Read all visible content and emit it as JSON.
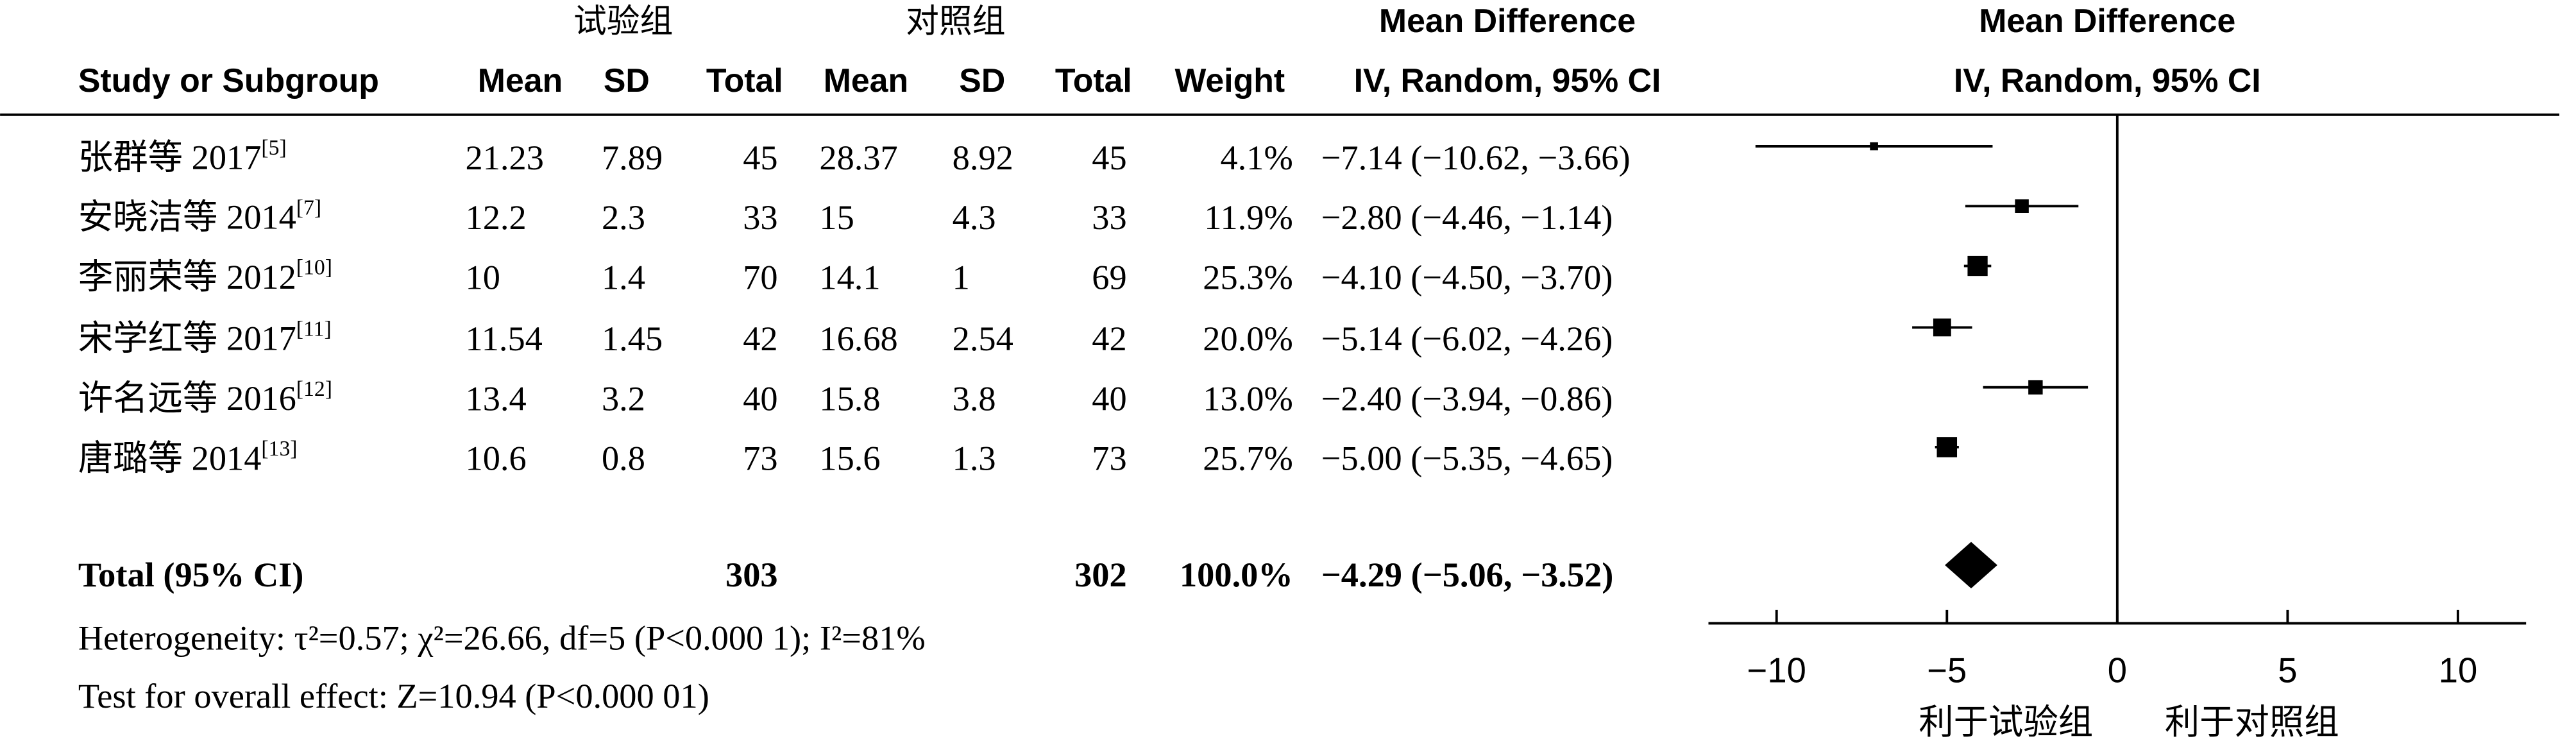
{
  "chart_data": {
    "type": "forest",
    "group_headers": [
      "试验组",
      "对照组"
    ],
    "columns": [
      "Study or Subgroup",
      "Mean",
      "SD",
      "Total",
      "Mean",
      "SD",
      "Total",
      "Weight",
      "IV, Random, 95% CI"
    ],
    "ci_header": "Mean Difference",
    "plot_header": [
      "Mean Difference",
      "IV, Random, 95% CI"
    ],
    "studies": [
      {
        "name": "张群等 2017",
        "ref": "[5]",
        "mean1": "21.23",
        "sd1": "7.89",
        "n1": "45",
        "mean2": "28.37",
        "sd2": "8.92",
        "n2": "45",
        "weight": 4.1,
        "weight_label": "4.1%",
        "md": -7.14,
        "lo": -10.62,
        "hi": -3.66,
        "ci_label": "−7.14 (−10.62, −3.66)"
      },
      {
        "name": "安晓洁等 2014",
        "ref": "[7]",
        "mean1": "12.2",
        "sd1": "2.3",
        "n1": "33",
        "mean2": "15",
        "sd2": "4.3",
        "n2": "33",
        "weight": 11.9,
        "weight_label": "11.9%",
        "md": -2.8,
        "lo": -4.46,
        "hi": -1.14,
        "ci_label": "−2.80 (−4.46, −1.14)"
      },
      {
        "name": "李丽荣等 2012",
        "ref": "[10]",
        "mean1": "10",
        "sd1": "1.4",
        "n1": "70",
        "mean2": "14.1",
        "sd2": "1",
        "n2": "69",
        "weight": 25.3,
        "weight_label": "25.3%",
        "md": -4.1,
        "lo": -4.5,
        "hi": -3.7,
        "ci_label": "−4.10 (−4.50, −3.70)"
      },
      {
        "name": "宋学红等 2017",
        "ref": "[11]",
        "mean1": "11.54",
        "sd1": "1.45",
        "n1": "42",
        "mean2": "16.68",
        "sd2": "2.54",
        "n2": "42",
        "weight": 20.0,
        "weight_label": "20.0%",
        "md": -5.14,
        "lo": -6.02,
        "hi": -4.26,
        "ci_label": "−5.14 (−6.02, −4.26)"
      },
      {
        "name": "许名远等 2016",
        "ref": "[12]",
        "mean1": "13.4",
        "sd1": "3.2",
        "n1": "40",
        "mean2": "15.8",
        "sd2": "3.8",
        "n2": "40",
        "weight": 13.0,
        "weight_label": "13.0%",
        "md": -2.4,
        "lo": -3.94,
        "hi": -0.86,
        "ci_label": "−2.40 (−3.94, −0.86)"
      },
      {
        "name": "唐璐等 2014",
        "ref": "[13]",
        "mean1": "10.6",
        "sd1": "0.8",
        "n1": "73",
        "mean2": "15.6",
        "sd2": "1.3",
        "n2": "73",
        "weight": 25.7,
        "weight_label": "25.7%",
        "md": -5.0,
        "lo": -5.35,
        "hi": -4.65,
        "ci_label": "−5.00 (−5.35, −4.65)"
      }
    ],
    "total": {
      "name": "Total (95% CI)",
      "n1": "303",
      "n2": "302",
      "weight_label": "100.0%",
      "md": -4.29,
      "lo": -5.06,
      "hi": -3.52,
      "ci_label": "−4.29 (−5.06, −3.52)"
    },
    "heterogeneity": "Heterogeneity: τ²=0.57; χ²=26.66, df=5 (P<0.000 1); I²=81%",
    "overall_effect": "Test for overall effect: Z=10.94 (P<0.000 01)",
    "xlim": [
      -12,
      12
    ],
    "xticks": [
      {
        "value": -10,
        "label": "−10"
      },
      {
        "value": -5,
        "label": "−5"
      },
      0,
      5,
      10
    ],
    "favours": [
      "利于试验组",
      "利于对照组"
    ]
  }
}
